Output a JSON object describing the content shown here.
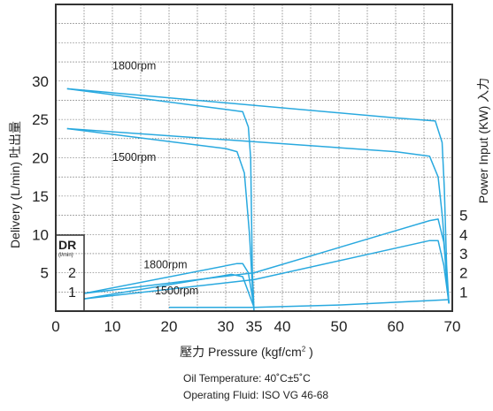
{
  "chart_data": {
    "type": "line",
    "xlabel": {
      "prefix": "壓力 Pressure (kgf/cm",
      "superscript": "2",
      "suffix": " )"
    },
    "ylabel": "Delivery (L/min) 吐出量",
    "ylabel_right": "Power Input (KW) 入力",
    "xlim": [
      0,
      70
    ],
    "ylim": [
      0,
      40
    ],
    "x_ticks": [
      "0",
      "10",
      "20",
      "30",
      "35",
      "40",
      "50",
      "60",
      "70"
    ],
    "y_ticks": [
      "5",
      "10",
      "15",
      "20",
      "25",
      "30"
    ],
    "right_ticks": [
      "1",
      "2",
      "3",
      "4",
      "5"
    ],
    "dr_box": {
      "title": "DR",
      "unit": "(l/min)",
      "values": [
        "1",
        "2"
      ]
    },
    "grid": true,
    "delivery_series": [
      {
        "name": "1800rpm",
        "cutoff": 35,
        "points": [
          [
            2,
            29
          ],
          [
            30,
            26.3
          ],
          [
            33,
            26
          ],
          [
            34,
            24
          ],
          [
            34.4,
            20
          ],
          [
            34.7,
            5
          ],
          [
            35,
            0
          ]
        ]
      },
      {
        "name": "1800rpm",
        "cutoff": 70,
        "points": [
          [
            2,
            29
          ],
          [
            60,
            25.2
          ],
          [
            67,
            24.8
          ],
          [
            68.2,
            22
          ],
          [
            68.6,
            16
          ],
          [
            69,
            6
          ],
          [
            69.4,
            1
          ]
        ]
      },
      {
        "name": "1500rpm",
        "cutoff": 35,
        "points": [
          [
            2,
            23.8
          ],
          [
            30,
            21.2
          ],
          [
            32,
            20.8
          ],
          [
            33.3,
            18
          ],
          [
            34.2,
            10
          ],
          [
            34.8,
            2
          ],
          [
            35,
            0
          ]
        ]
      },
      {
        "name": "1500rpm",
        "cutoff": 70,
        "points": [
          [
            2,
            23.8
          ],
          [
            60,
            20.8
          ],
          [
            66,
            20.2
          ],
          [
            67.5,
            17.5
          ],
          [
            68.3,
            12
          ],
          [
            69,
            4
          ],
          [
            69.4,
            1
          ]
        ]
      }
    ],
    "power_series": [
      {
        "name": "1800rpm",
        "points": [
          [
            5,
            2.3
          ],
          [
            32,
            6.2
          ],
          [
            33,
            6.2
          ],
          [
            34,
            5
          ],
          [
            35,
            0.5
          ]
        ]
      },
      {
        "name": "1800rpm",
        "points": [
          [
            5,
            2.3
          ],
          [
            35,
            5
          ],
          [
            66,
            11.8
          ],
          [
            67.5,
            12
          ],
          [
            68.5,
            9
          ],
          [
            69.4,
            1
          ]
        ]
      },
      {
        "name": "1500rpm",
        "points": [
          [
            5,
            1.6
          ],
          [
            31,
            4.8
          ],
          [
            33,
            4.5
          ],
          [
            35,
            0.5
          ]
        ]
      },
      {
        "name": "1500rpm",
        "points": [
          [
            5,
            1.6
          ],
          [
            35,
            4.1
          ],
          [
            66,
            9.2
          ],
          [
            67.5,
            9.2
          ],
          [
            68.5,
            6
          ],
          [
            69.4,
            1
          ]
        ]
      },
      {
        "name": "DR",
        "points": [
          [
            20,
            0.5
          ],
          [
            35,
            0.5
          ],
          [
            50,
            0.8
          ],
          [
            69.4,
            1.5
          ]
        ]
      }
    ],
    "curve_labels": [
      {
        "text": "1800rpm",
        "x": 10,
        "y": 31.5
      },
      {
        "text": "1500rpm",
        "x": 10,
        "y": 19.6
      },
      {
        "text": "1800rpm",
        "x": 15.5,
        "y": 5.6
      },
      {
        "text": "1500rpm",
        "x": 17.5,
        "y": 2.2
      }
    ],
    "line_color": "#29a9df"
  },
  "notes": {
    "temperature": "Oil Temperature: 40˚C±5˚C",
    "fluid": "Operating  Fluid: ISO VG 46-68"
  }
}
